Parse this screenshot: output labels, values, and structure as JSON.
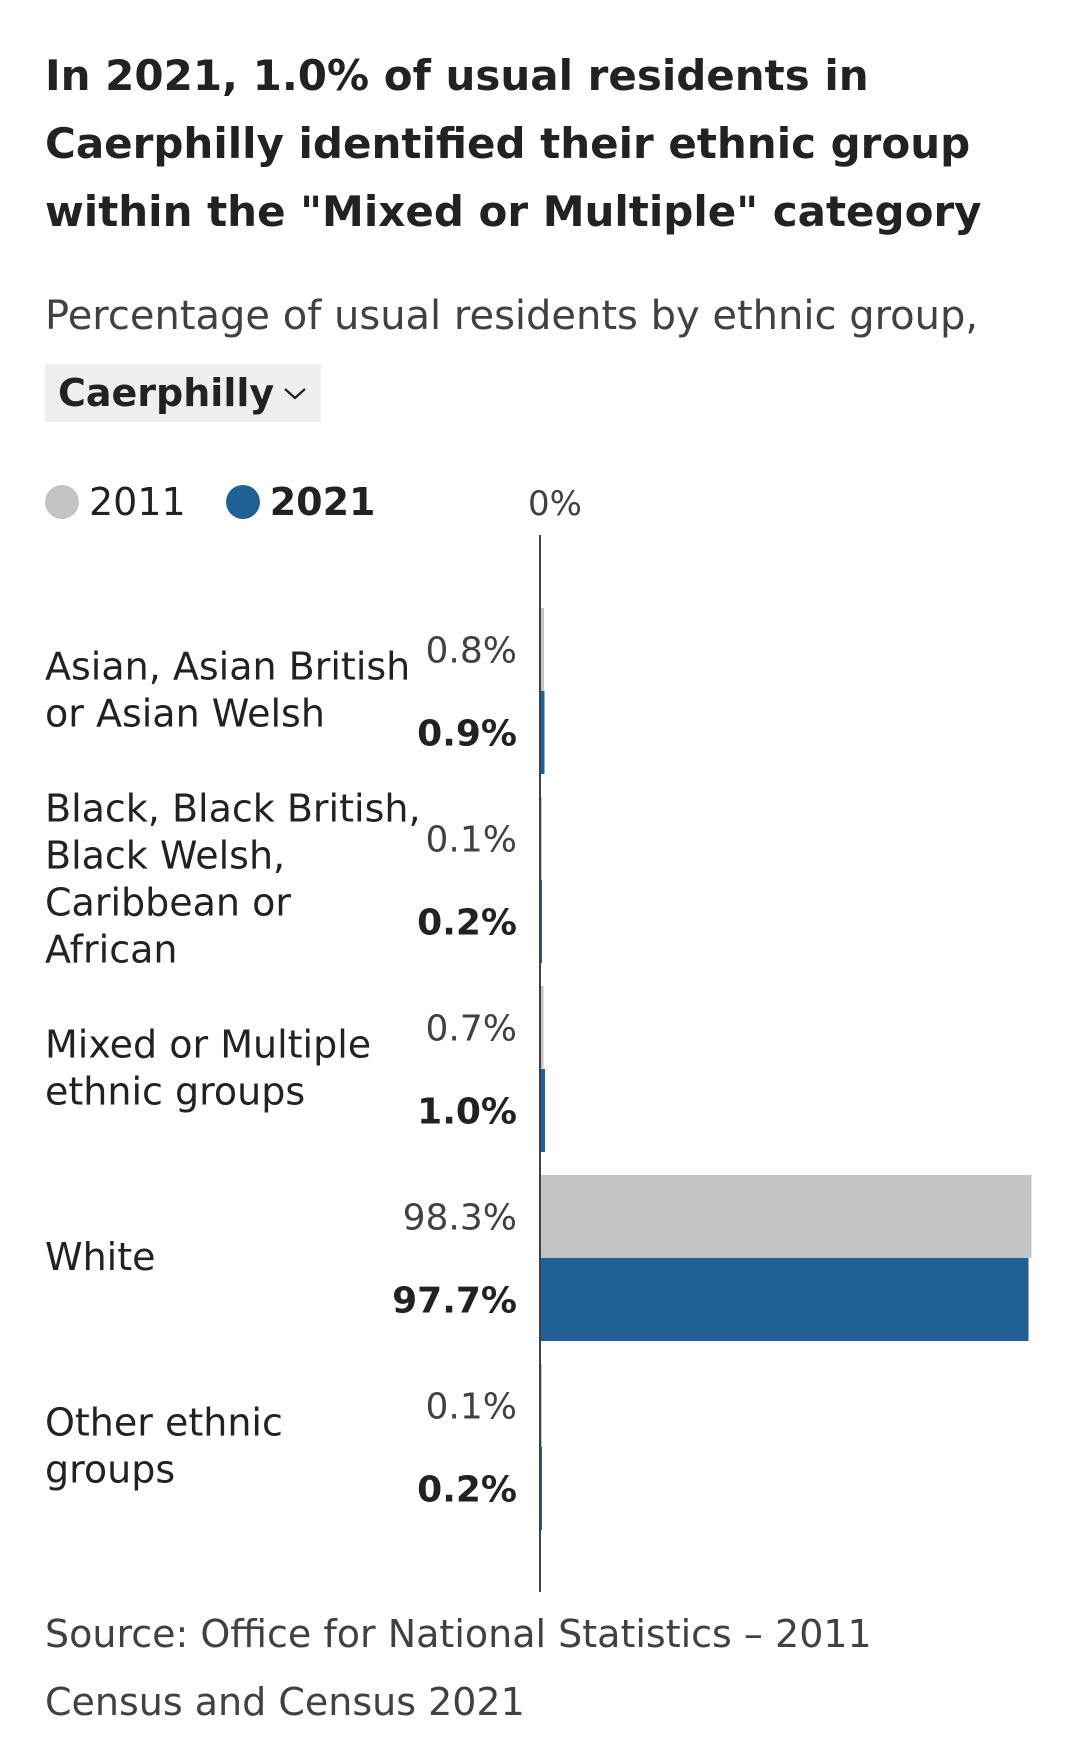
{
  "title": "In 2021, 1.0% of usual residents in Caerphilly identified their ethnic group within the \"Mixed or Multiple\" category",
  "subtitle": "Percentage of usual residents by ethnic group,",
  "area_selector": {
    "selected": "Caerphilly"
  },
  "icons": {
    "dropdown": "chevron-down-icon"
  },
  "colors": {
    "series_2011": "#c4c4c4",
    "series_2021": "#206095",
    "axis": "#414042"
  },
  "source": "Source: Office for National Statistics – 2011 Census and Census 2021",
  "chart_data": {
    "type": "bar",
    "orientation": "horizontal",
    "title": "In 2021, 1.0% of usual residents in Caerphilly identified their ethnic group within the \"Mixed or Multiple\" category",
    "subtitle": "Percentage of usual residents by ethnic group, Caerphilly",
    "xlabel": "",
    "ylabel": "",
    "axis_tick_label": "0%",
    "xlim": [
      0,
      100
    ],
    "categories": [
      [
        "Asian, Asian British",
        "or Asian Welsh"
      ],
      [
        "Black, Black British,",
        "Black Welsh,",
        "Caribbean or",
        "African"
      ],
      [
        "Mixed or Multiple",
        "ethnic groups"
      ],
      [
        "White"
      ],
      [
        "Other ethnic",
        "groups"
      ]
    ],
    "series": [
      {
        "name": "2011",
        "values": [
          0.8,
          0.1,
          0.7,
          98.3,
          0.1
        ],
        "labels": [
          "0.8%",
          "0.1%",
          "0.7%",
          "98.3%",
          "0.1%"
        ]
      },
      {
        "name": "2021",
        "values": [
          0.9,
          0.2,
          1.0,
          97.7,
          0.2
        ],
        "labels": [
          "0.9%",
          "0.2%",
          "1.0%",
          "97.7%",
          "0.2%"
        ]
      }
    ],
    "legend": {
      "position": "top-left"
    },
    "grid": false
  }
}
